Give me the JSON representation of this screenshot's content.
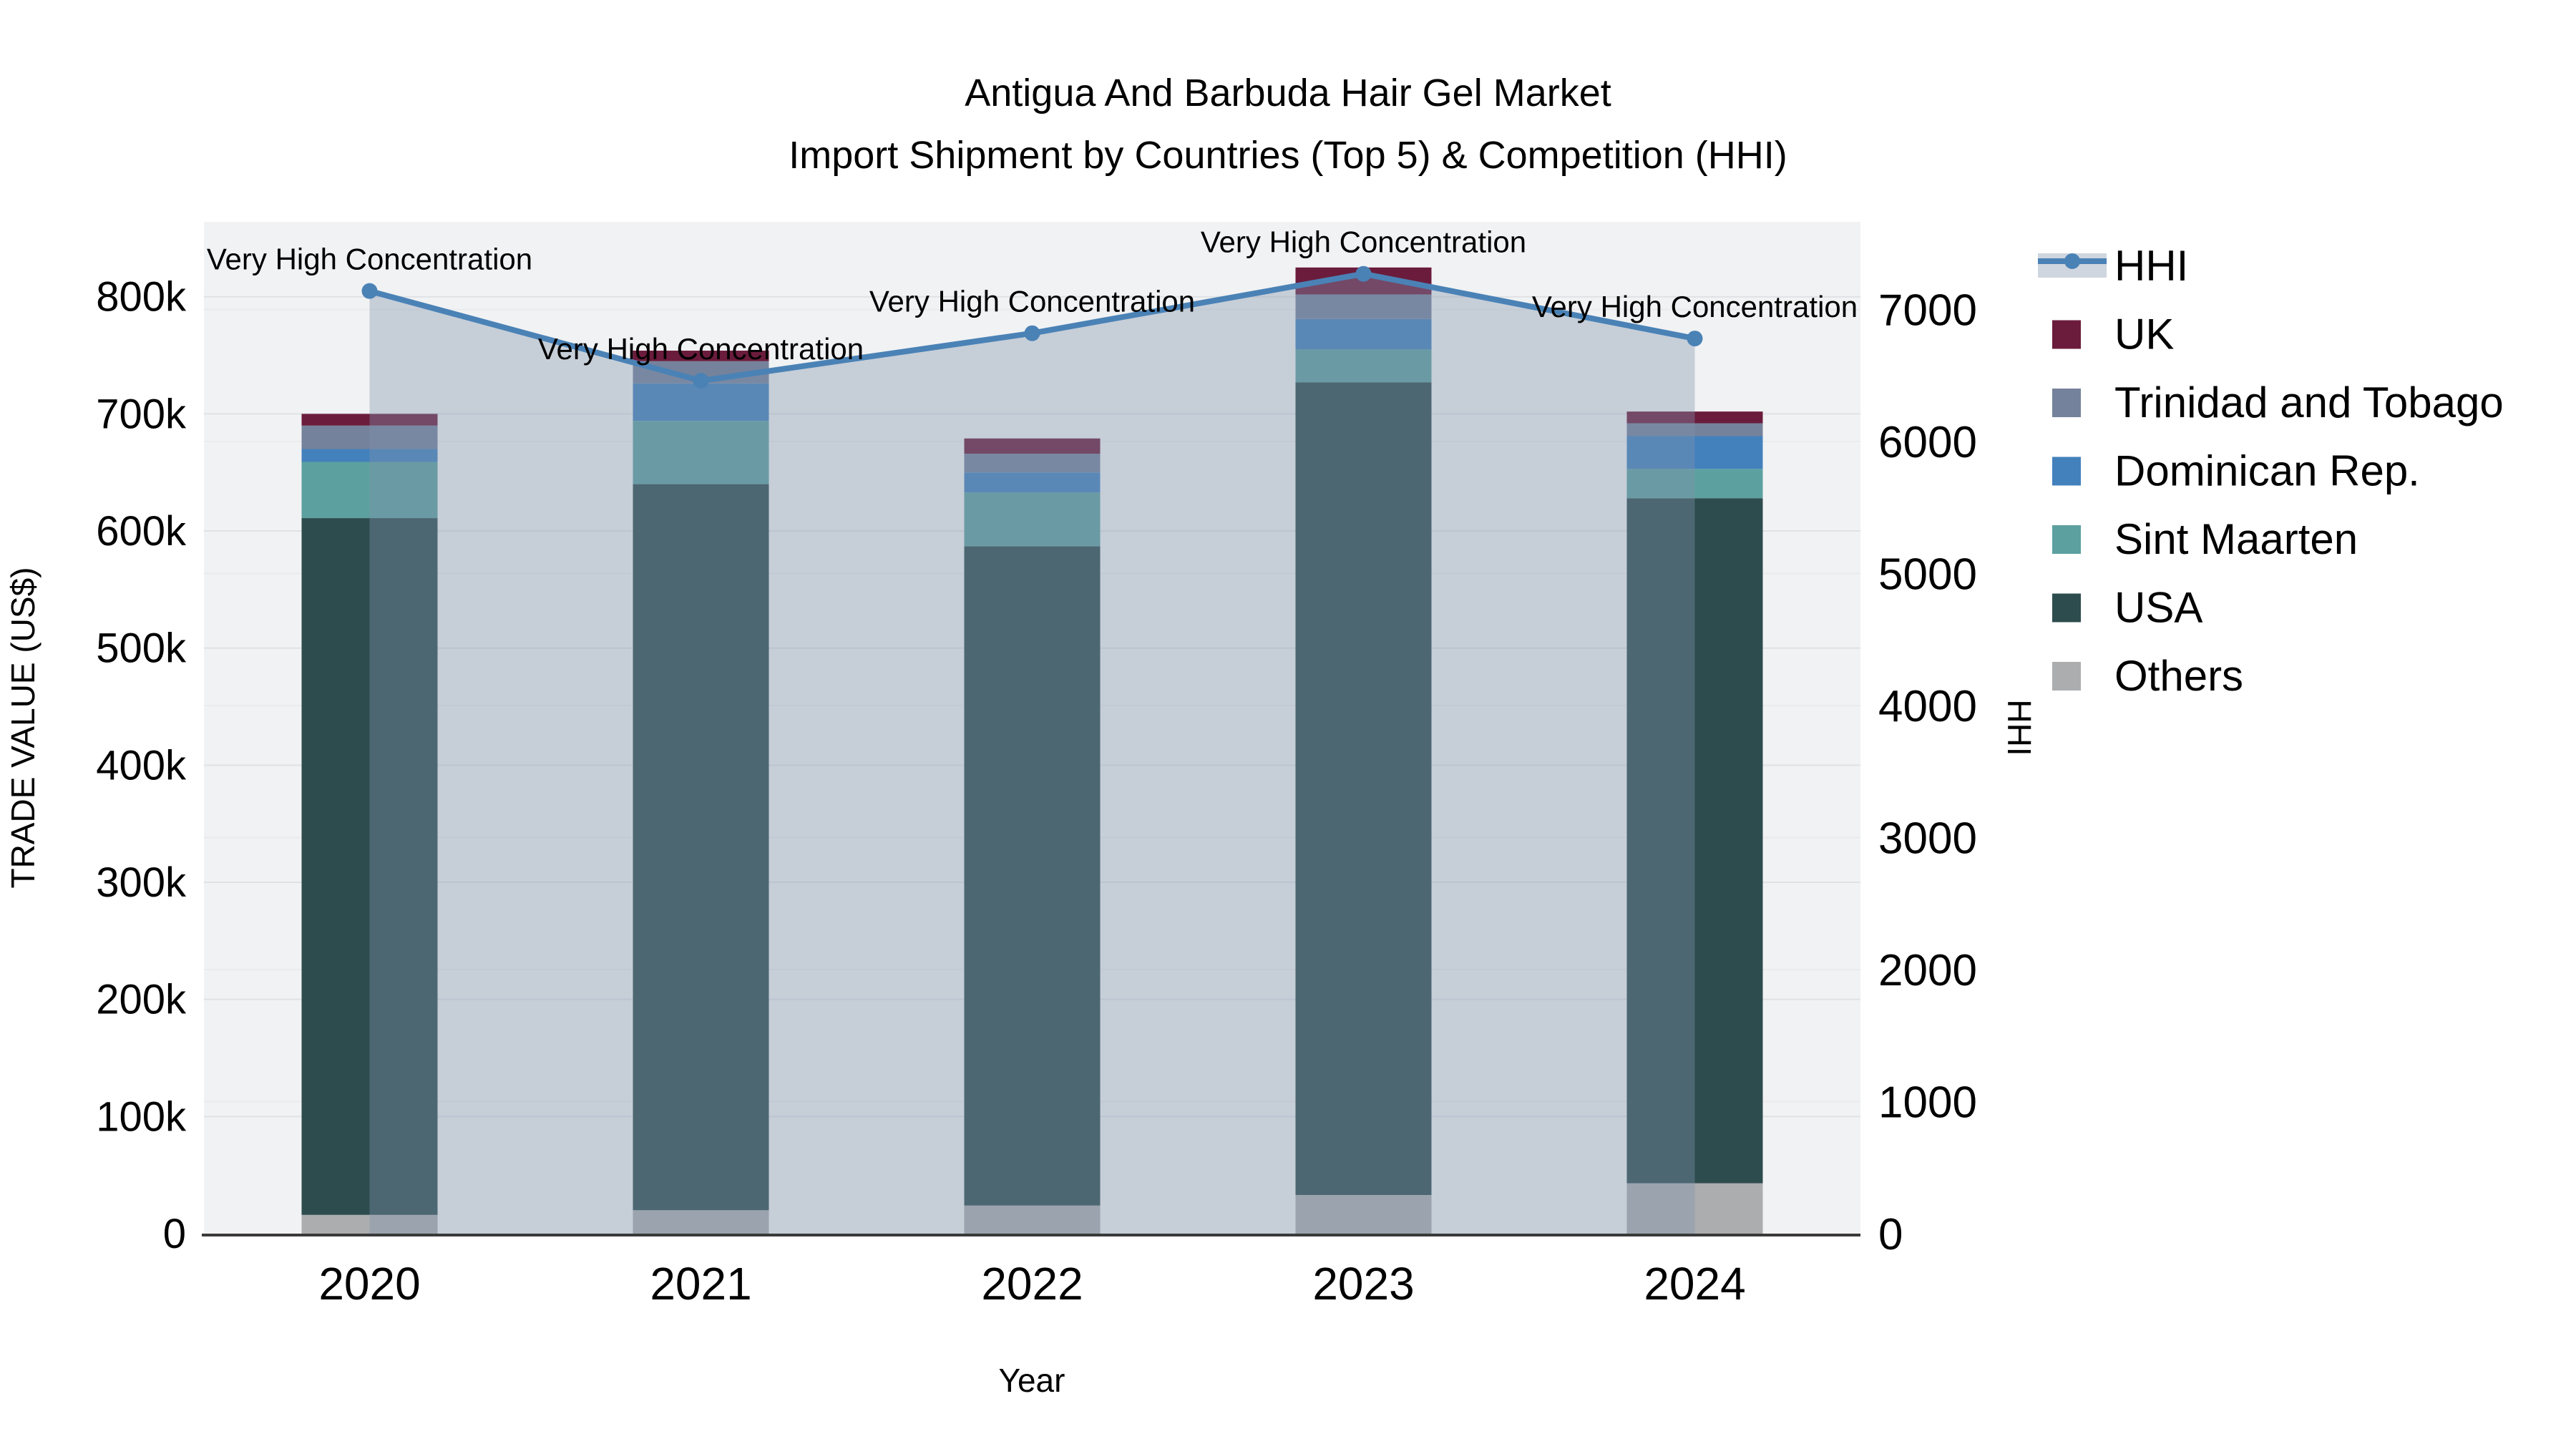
{
  "chart_data": {
    "type": "bar",
    "title": "Antigua And Barbuda Hair Gel Market",
    "subtitle": "Import Shipment by Countries (Top 5) & Competition (HHI)",
    "xlabel": "Year",
    "ylabel_left": "TRADE VALUE (US$)",
    "ylabel_right": "HHI",
    "categories": [
      "2020",
      "2021",
      "2022",
      "2023",
      "2024"
    ],
    "value_unit": "thousand US$ (k)",
    "series": [
      {
        "name": "Others",
        "color": "#ABADAF",
        "values": [
          16,
          20,
          24,
          33,
          43
        ]
      },
      {
        "name": "USA",
        "color": "#2D4C4E",
        "values": [
          595,
          620,
          563,
          694,
          585
        ]
      },
      {
        "name": "Sint Maarten",
        "color": "#5CA0A0",
        "values": [
          48,
          54,
          46,
          28,
          25
        ]
      },
      {
        "name": "Dominican Rep.",
        "color": "#4381BC",
        "values": [
          11,
          32,
          17,
          26,
          28
        ]
      },
      {
        "name": "Trinidad and Tobago",
        "color": "#75829B",
        "values": [
          20,
          19,
          16,
          21,
          11
        ]
      },
      {
        "name": "UK",
        "color": "#6B1C3C",
        "values": [
          10,
          9,
          13,
          23,
          10
        ]
      }
    ],
    "bar_totals": [
      700,
      754,
      679,
      825,
      702
    ],
    "hhi_line": {
      "name": "HHI",
      "color": "#4A82B6",
      "area_color": "rgba(128,146,173,0.38)",
      "values": [
        7140,
        6460,
        6820,
        7270,
        6780
      ]
    },
    "annotation_label": "Very High Concentration",
    "y_axis_left": {
      "max": 864,
      "ticks": [
        0,
        100,
        200,
        300,
        400,
        500,
        600,
        700,
        800
      ],
      "labels": [
        "0",
        "100k",
        "200k",
        "300k",
        "400k",
        "500k",
        "600k",
        "700k",
        "800k"
      ]
    },
    "y_axis_right": {
      "max": 7664,
      "ticks": [
        0,
        1000,
        2000,
        3000,
        4000,
        5000,
        6000,
        7000
      ],
      "labels": [
        "0",
        "1000",
        "2000",
        "3000",
        "4000",
        "5000",
        "6000",
        "7000"
      ]
    },
    "legend": [
      {
        "label": "HHI",
        "type": "line",
        "color": "#4A82B6"
      },
      {
        "label": "UK",
        "type": "swatch",
        "color": "#6B1C3C"
      },
      {
        "label": "Trinidad and Tobago",
        "type": "swatch",
        "color": "#75829B"
      },
      {
        "label": "Dominican Rep.",
        "type": "swatch",
        "color": "#4381BC"
      },
      {
        "label": "Sint Maarten",
        "type": "swatch",
        "color": "#5CA0A0"
      },
      {
        "label": "USA",
        "type": "swatch",
        "color": "#2D4C4E"
      },
      {
        "label": "Others",
        "type": "swatch",
        "color": "#ABADAF"
      }
    ],
    "style": {
      "plot_bg": "#F1F2F3",
      "grid_left": "#DFE2E5",
      "grid_right": "#EAEBED",
      "axis_line": "#3A3A3A",
      "text": "#000000"
    }
  }
}
